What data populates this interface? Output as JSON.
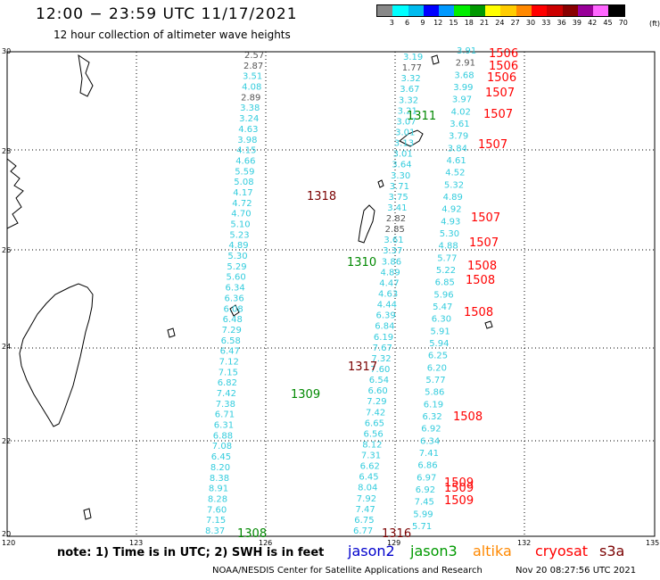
{
  "title": "12:00 − 23:59 UTC 11/17/2021",
  "subtitle": "12 hour collection of altimeter wave heights",
  "legend": {
    "colors": [
      "#888888",
      "#00ffff",
      "#00bbee",
      "#0000ff",
      "#0099ff",
      "#00ee00",
      "#009900",
      "#ffff00",
      "#ffcc00",
      "#ff8800",
      "#ff0000",
      "#cc0000",
      "#880000",
      "#990099",
      "#ff66ff",
      "#000000"
    ],
    "ticks": [
      "3",
      "6",
      "9",
      "12",
      "15",
      "18",
      "21",
      "24",
      "27",
      "30",
      "33",
      "36",
      "39",
      "42",
      "45",
      "70"
    ],
    "unit": "(ft)"
  },
  "axes": {
    "lon_ticks": [
      "120",
      "123",
      "126",
      "129",
      "132",
      "135"
    ],
    "lat_ticks": [
      "30",
      "28",
      "26",
      "24",
      "22",
      "20"
    ]
  },
  "tracks": {
    "tracks_cyan_color": "#33ccdd",
    "gray_color": "#555555"
  },
  "labels": {
    "t1318": "1318",
    "t1310": "1310",
    "t1311": "1311",
    "t1317": "1317",
    "t1309": "1309",
    "t1308": "1308",
    "t1316": "1316",
    "t1506": "1506",
    "t1507": "1507",
    "t1508": "1508",
    "t1509": "1509"
  },
  "note": "note: 1) Time is in UTC; 2) SWH is in feet",
  "satellites": {
    "jason2": "jason2",
    "jason3": "jason3",
    "altika": "altika",
    "cryosat": "cryosat",
    "s3a": "s3a"
  },
  "footer": "NOAA/NESDIS Center for Satellite Applications and Research",
  "timestamp": "Nov 20 08:27:56 UTC 2021",
  "wave_values": {
    "track_a": [
      "2.57",
      "2.87",
      "3.51",
      "4.08",
      "2.89",
      "3.38",
      "3.24",
      "4.63",
      "3.98",
      "4.15",
      "4.66",
      "5.59",
      "5.08",
      "4.17",
      "4.72",
      "4.70",
      "5.10",
      "5.23",
      "4.89",
      "5.30",
      "5.29",
      "5.60",
      "6.34",
      "6.36",
      "6.08",
      "6.48",
      "7.29",
      "6.58",
      "6.47",
      "7.12",
      "7.15",
      "6.82",
      "7.42",
      "7.38",
      "6.71",
      "6.31",
      "6.88",
      "7.08",
      "6.45",
      "8.20",
      "8.38",
      "8.91",
      "8.28",
      "7.60",
      "7.15",
      "8.37"
    ],
    "track_b": [
      "3.19",
      "1.77",
      "3.32",
      "3.67",
      "3.32",
      "3.21",
      "3.07",
      "3.01",
      "3.13",
      "3.01",
      "3.64",
      "3.30",
      "3.71",
      "3.75",
      "3.41",
      "2.82",
      "2.85",
      "3.61",
      "3.37",
      "3.86",
      "4.89",
      "4.47",
      "4.63",
      "4.44",
      "6.39",
      "6.84",
      "6.19",
      "7.67",
      "7.32",
      "7.60",
      "6.54",
      "6.60",
      "7.29",
      "7.42",
      "6.65",
      "6.56",
      "8.12",
      "7.31",
      "6.62",
      "6.45",
      "8.04",
      "7.92",
      "7.47",
      "6.75",
      "6.77"
    ],
    "track_c": [
      "3.91",
      "2.91",
      "3.68",
      "3.99",
      "3.97",
      "4.02",
      "3.61",
      "3.79",
      "3.84",
      "4.61",
      "4.52",
      "5.32",
      "4.89",
      "4.92",
      "4.93",
      "5.30",
      "4.88",
      "5.77",
      "5.22",
      "6.85",
      "5.96",
      "5.47",
      "6.30",
      "5.91",
      "5.94",
      "6.25",
      "6.20",
      "5.77",
      "5.86",
      "6.19",
      "6.32",
      "6.92",
      "6.34",
      "7.41",
      "6.86",
      "6.97",
      "6.92",
      "7.45",
      "5.99",
      "5.71"
    ]
  }
}
